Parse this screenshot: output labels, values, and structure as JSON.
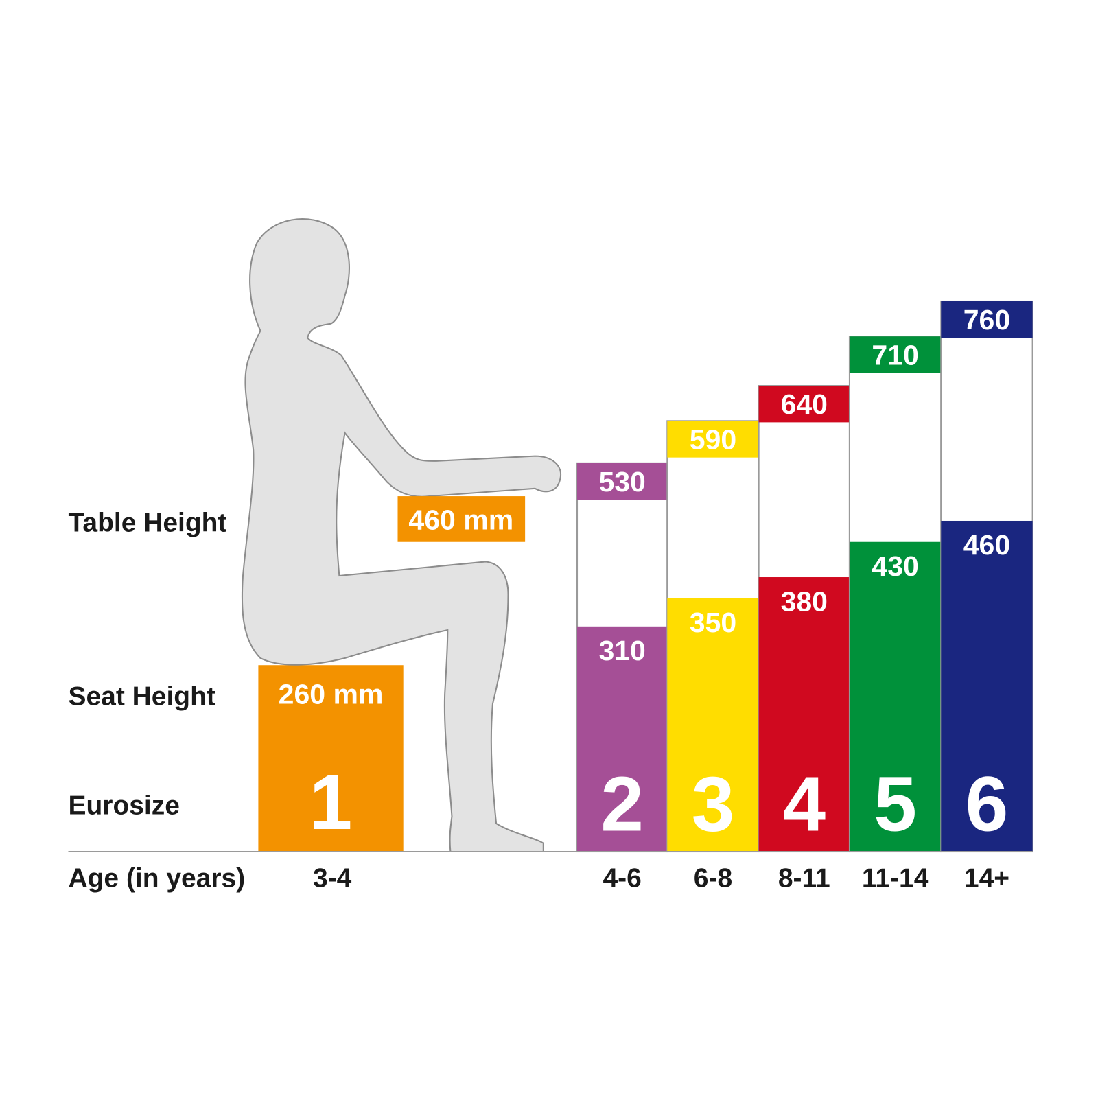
{
  "chart_data": {
    "type": "bar",
    "row_labels": {
      "table_height": "Table Height",
      "seat_height": "Seat Height",
      "eurosize": "Eurosize",
      "age": "Age (in years)"
    },
    "categories": [
      "3-4",
      "4-6",
      "6-8",
      "8-11",
      "11-14",
      "14+"
    ],
    "eurosize": [
      "1",
      "2",
      "3",
      "4",
      "5",
      "6"
    ],
    "seat_height_mm": [
      260,
      310,
      350,
      380,
      430,
      460
    ],
    "table_height_mm": [
      460,
      530,
      590,
      640,
      710,
      760
    ],
    "size1_seat_label": "260 mm",
    "size1_table_label": "460 mm",
    "colors": [
      "#f39200",
      "#a54f96",
      "#ffdd00",
      "#d0091f",
      "#00913a",
      "#1a2680"
    ],
    "silhouette": "seated-child-figure"
  }
}
